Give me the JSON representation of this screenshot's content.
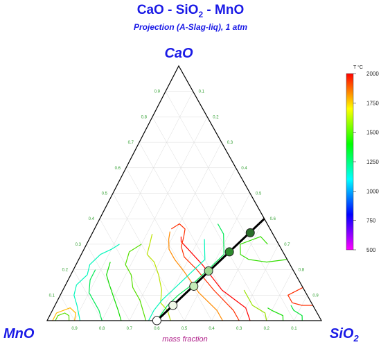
{
  "chart_data": {
    "type": "ternary",
    "title_parts": [
      {
        "text": "CaO - SiO",
        "sub": "2",
        "after": " - MnO"
      }
    ],
    "subtitle": "Projection (A-Slag-liq), 1 atm",
    "components": {
      "top": "CaO",
      "left": "MnO",
      "right": "SiO",
      "right_subscript": "2"
    },
    "axis_note": "mass fraction",
    "ticks": [
      "0.1",
      "0.2",
      "0.3",
      "0.4",
      "0.5",
      "0.6",
      "0.7",
      "0.8",
      "0.9"
    ],
    "colorbar": {
      "unit": "T °C",
      "min": 500,
      "max": 2000,
      "tick_values": [
        500,
        750,
        1000,
        1250,
        1500,
        1750,
        2000
      ],
      "tick_labels": [
        "500",
        "750",
        "1000",
        "1250",
        "1500",
        "1750",
        "2000"
      ],
      "colors": [
        "#ff00ff",
        "#0000ff",
        "#00ffff",
        "#00ff00",
        "#ffff00",
        "#ff0000"
      ]
    },
    "isopleth": {
      "from": {
        "CaO": 0.4,
        "SiO2": 0.6,
        "MnO": 0.0
      },
      "to": {
        "CaO": 0.0,
        "SiO2": 0.4,
        "MnO": 0.6
      },
      "color": "#000000"
    },
    "points": [
      {
        "CaO": 0.0,
        "SiO2": 0.4,
        "MnO": 0.6,
        "fill": "#ffffff"
      },
      {
        "CaO": 0.06,
        "SiO2": 0.43,
        "MnO": 0.51,
        "fill": "#f0f8e8"
      },
      {
        "CaO": 0.135,
        "SiO2": 0.47,
        "MnO": 0.395,
        "fill": "#c6ecb8"
      },
      {
        "CaO": 0.195,
        "SiO2": 0.495,
        "MnO": 0.31,
        "fill": "#9ed690"
      },
      {
        "CaO": 0.27,
        "SiO2": 0.535,
        "MnO": 0.195,
        "fill": "#2e8b2e"
      },
      {
        "CaO": 0.345,
        "SiO2": 0.575,
        "MnO": 0.08,
        "fill": "#2a6e2a"
      }
    ],
    "isotherms": [
      {
        "T": 2000,
        "path": [
          [
            0.74,
            0.0
          ],
          [
            0.7,
            0.05
          ],
          [
            0.58,
            0.12
          ],
          [
            0.46,
            0.22
          ],
          [
            0.38,
            0.28
          ],
          [
            0.34,
            0.31
          ],
          [
            0.33,
            0.33
          ]
        ]
      },
      {
        "T": 1950,
        "path": [
          [
            0.7,
            0.0
          ],
          [
            0.66,
            0.04
          ],
          [
            0.55,
            0.12
          ],
          [
            0.45,
            0.2
          ],
          [
            0.38,
            0.25
          ],
          [
            0.35,
            0.29
          ],
          [
            0.34,
            0.33
          ],
          [
            0.33,
            0.36
          ],
          [
            0.3,
            0.38
          ],
          [
            0.28,
            0.36
          ]
        ]
      },
      {
        "T": 1850,
        "path": [
          [
            0.64,
            0.0
          ],
          [
            0.6,
            0.04
          ],
          [
            0.5,
            0.11
          ],
          [
            0.41,
            0.19
          ],
          [
            0.35,
            0.24
          ],
          [
            0.31,
            0.28
          ],
          [
            0.29,
            0.32
          ],
          [
            0.28,
            0.35
          ]
        ]
      },
      {
        "T": 1650,
        "path": [
          [
            0.45,
            0.0
          ],
          [
            0.42,
            0.04
          ],
          [
            0.38,
            0.07
          ],
          [
            0.36,
            0.12
          ],
          [
            0.32,
            0.18
          ],
          [
            0.28,
            0.23
          ],
          [
            0.24,
            0.26
          ],
          [
            0.23,
            0.3
          ],
          [
            0.22,
            0.34
          ]
        ]
      },
      {
        "T": 1500,
        "path": [
          [
            0.36,
            0.0
          ],
          [
            0.33,
            0.04
          ],
          [
            0.3,
            0.08
          ],
          [
            0.25,
            0.13
          ],
          [
            0.22,
            0.18
          ],
          [
            0.18,
            0.22
          ],
          [
            0.17,
            0.27
          ],
          [
            0.2,
            0.3
          ]
        ]
      },
      {
        "T": 1400,
        "path": [
          [
            0.27,
            0.0
          ],
          [
            0.24,
            0.04
          ],
          [
            0.2,
            0.09
          ],
          [
            0.16,
            0.14
          ],
          [
            0.13,
            0.18
          ],
          [
            0.12,
            0.23
          ]
        ]
      },
      {
        "T": 1250,
        "path": [
          [
            0.2,
            0.0
          ],
          [
            0.17,
            0.04
          ],
          [
            0.14,
            0.07
          ],
          [
            0.1,
            0.11
          ],
          [
            0.08,
            0.16
          ],
          [
            0.08,
            0.2
          ]
        ]
      },
      {
        "T": 1100,
        "path": [
          [
            0.12,
            0.0
          ],
          [
            0.1,
            0.03
          ],
          [
            0.08,
            0.06
          ],
          [
            0.05,
            0.1
          ],
          [
            0.04,
            0.14
          ],
          [
            0.06,
            0.18
          ],
          [
            0.05,
            0.22
          ],
          [
            0.07,
            0.26
          ],
          [
            0.1,
            0.28
          ],
          [
            0.12,
            0.3
          ]
        ]
      },
      {
        "T": 1600,
        "path": [
          [
            0.8,
            0.0
          ],
          [
            0.78,
            0.03
          ],
          [
            0.72,
            0.06
          ],
          [
            0.66,
            0.12
          ]
        ]
      },
      {
        "T": 1400,
        "path": [
          [
            0.86,
            0.0
          ],
          [
            0.85,
            0.02
          ],
          [
            0.8,
            0.04
          ],
          [
            0.78,
            0.05
          ]
        ]
      },
      {
        "T": 1300,
        "path": [
          [
            0.93,
            0.0
          ],
          [
            0.92,
            0.02
          ],
          [
            0.88,
            0.04
          ],
          [
            0.86,
            0.06
          ]
        ]
      },
      {
        "T": 1950,
        "path": [
          [
            0.94,
            0.06
          ],
          [
            0.9,
            0.06
          ],
          [
            0.86,
            0.07
          ],
          [
            0.83,
            0.1
          ],
          [
            0.87,
            0.13
          ]
        ]
      },
      {
        "T": 1500,
        "path": [
          [
            0.03,
            0.0
          ],
          [
            0.03,
            0.02
          ],
          [
            0.05,
            0.03
          ],
          [
            0.07,
            0.02
          ],
          [
            0.08,
            0.0
          ]
        ]
      },
      {
        "T": 1800,
        "path": [
          [
            0.02,
            0.0
          ],
          [
            0.02,
            0.03
          ],
          [
            0.06,
            0.05
          ],
          [
            0.09,
            0.03
          ],
          [
            0.1,
            0.0
          ]
        ]
      },
      {
        "T": 1450,
        "path": [
          [
            0.76,
            0.24
          ],
          [
            0.69,
            0.23
          ],
          [
            0.62,
            0.24
          ],
          [
            0.58,
            0.26
          ],
          [
            0.56,
            0.3
          ],
          [
            0.62,
            0.33
          ],
          [
            0.66,
            0.3
          ]
        ]
      },
      {
        "T": 1250,
        "path": [
          [
            0.44,
            0.38
          ],
          [
            0.48,
            0.34
          ],
          [
            0.5,
            0.3
          ],
          [
            0.52,
            0.26
          ],
          [
            0.5,
            0.22
          ],
          [
            0.48,
            0.18
          ],
          [
            0.46,
            0.14
          ],
          [
            0.43,
            0.1
          ],
          [
            0.41,
            0.06
          ],
          [
            0.4,
            0.0
          ]
        ]
      },
      {
        "T": 1100,
        "path": [
          [
            0.42,
            0.32
          ],
          [
            0.44,
            0.28
          ],
          [
            0.46,
            0.24
          ],
          [
            0.44,
            0.2
          ],
          [
            0.42,
            0.16
          ],
          [
            0.4,
            0.12
          ],
          [
            0.38,
            0.08
          ],
          [
            0.37,
            0.04
          ],
          [
            0.37,
            0.0
          ]
        ]
      }
    ]
  }
}
